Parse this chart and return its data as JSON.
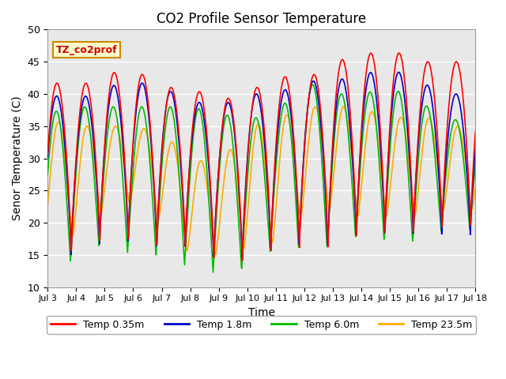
{
  "title": "CO2 Profile Sensor Temperature",
  "xlabel": "Time",
  "ylabel": "Senor Temperature (C)",
  "ylim": [
    10,
    50
  ],
  "annotation_text": "TZ_co2prof",
  "annotation_color": "#cc0000",
  "annotation_bg": "#ffffcc",
  "annotation_border": "#cc8800",
  "colors": {
    "Temp 0.35m": "#ff0000",
    "Temp 1.8m": "#0000cc",
    "Temp 6.0m": "#00bb00",
    "Temp 23.5m": "#ffaa00"
  },
  "bg_color": "#e8e8e8",
  "grid_color": "#ffffff",
  "x_tick_labels": [
    "Jul 3",
    "Jul 4",
    "Jul 5",
    "Jul 6",
    "Jul 7",
    "Jul 8",
    "Jul 9",
    "Jul 10",
    "Jul 11",
    "Jul 12",
    "Jul 13",
    "Jul 14",
    "Jul 15",
    "Jul 16",
    "Jul 17",
    "Jul 18"
  ],
  "legend_labels": [
    "Temp 0.35m",
    "Temp 1.8m",
    "Temp 6.0m",
    "Temp 23.5m"
  ]
}
